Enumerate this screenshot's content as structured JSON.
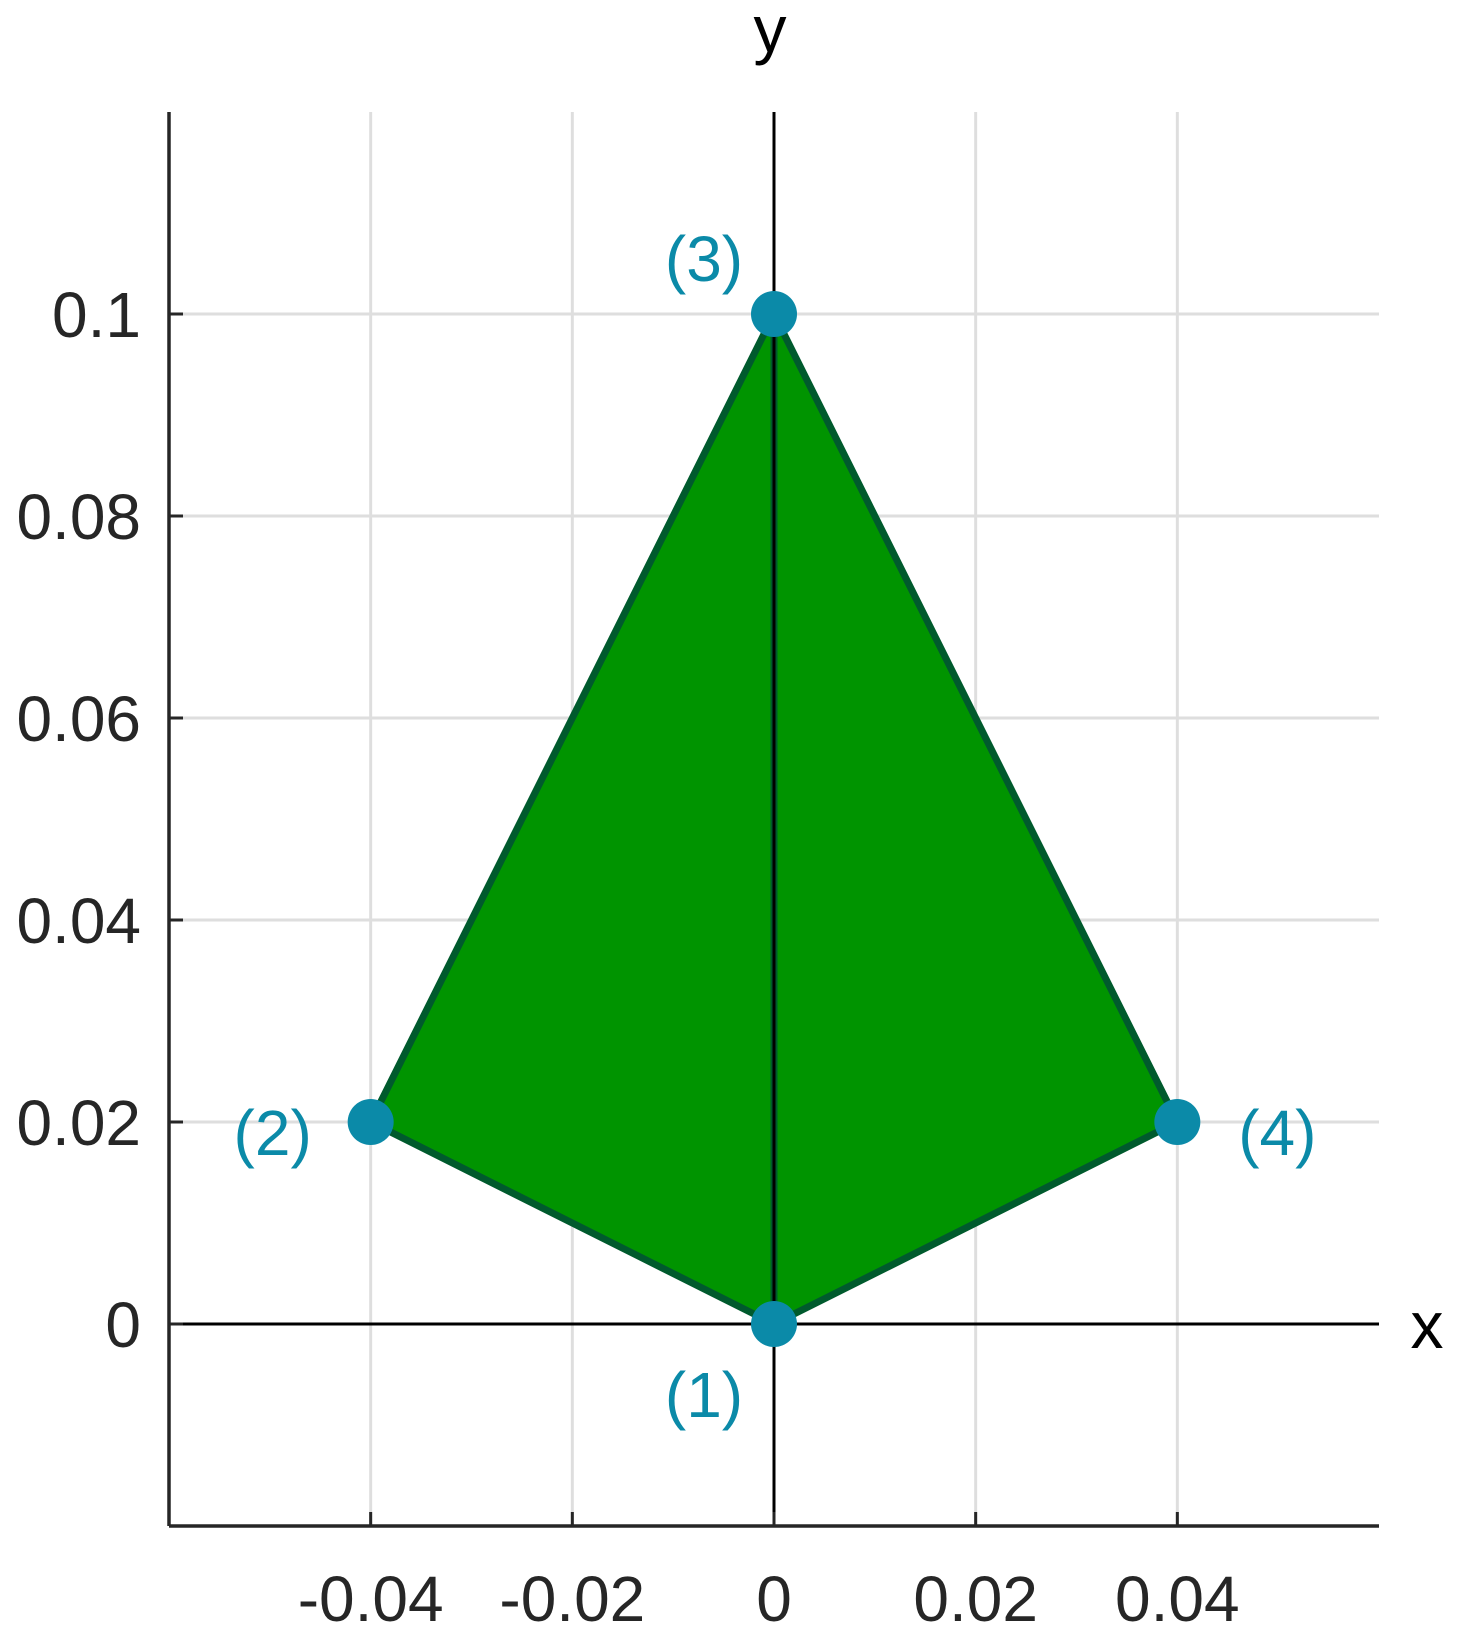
{
  "chart_data": {
    "type": "scatter",
    "title": "",
    "xlabel": "x",
    "ylabel": "y",
    "xlim": [
      -0.06,
      0.06
    ],
    "ylim": [
      -0.02,
      0.12
    ],
    "xticks": [
      -0.04,
      -0.02,
      0,
      0.02,
      0.04
    ],
    "xtick_labels": [
      "-0.04",
      "-0.02",
      "0",
      "0.02",
      "0.04"
    ],
    "yticks": [
      0,
      0.02,
      0.04,
      0.06,
      0.08,
      0.1
    ],
    "ytick_labels": [
      "0",
      "0.02",
      "0.04",
      "0.06",
      "0.08",
      "0.1"
    ],
    "grid": true,
    "nodes": [
      {
        "label": "(1)",
        "x": 0,
        "y": 0
      },
      {
        "label": "(2)",
        "x": -0.04,
        "y": 0.02
      },
      {
        "label": "(3)",
        "x": 0,
        "y": 0.1
      },
      {
        "label": "(4)",
        "x": 0.04,
        "y": 0.02
      }
    ],
    "elements": [
      {
        "nodes": [
          1,
          2,
          3
        ]
      },
      {
        "nodes": [
          1,
          3,
          4
        ]
      }
    ],
    "colors": {
      "fill": "#009400",
      "edge": "#005a2d",
      "node": "#0b8aa8",
      "grid": "#dedede",
      "axis": "#262626"
    }
  }
}
